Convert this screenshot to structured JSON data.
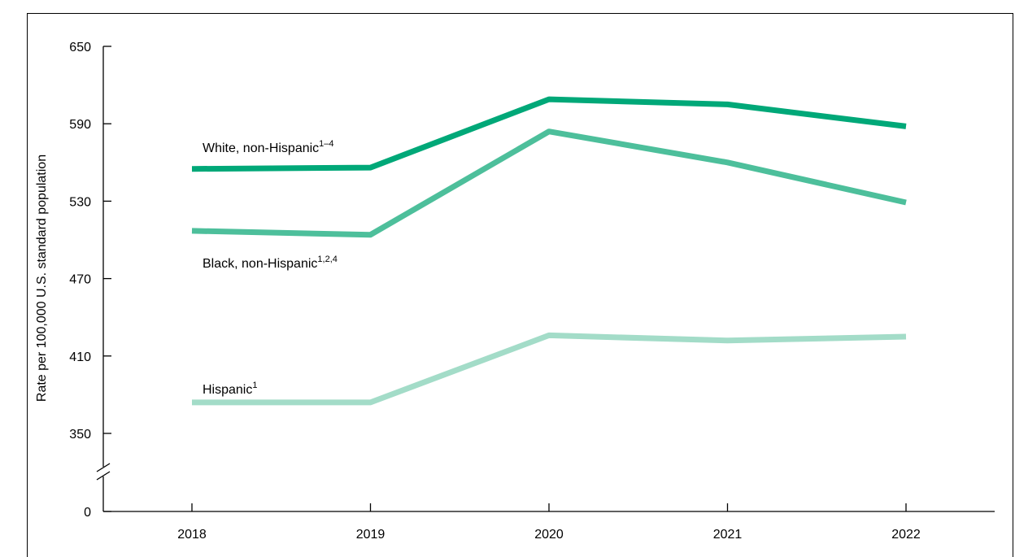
{
  "chart_data": {
    "type": "line",
    "title": "",
    "xlabel": "",
    "ylabel": "Rate per 100,000 U.S. standard population",
    "categories": [
      "2018",
      "2019",
      "2020",
      "2021",
      "2022"
    ],
    "y_ticks": [
      "650",
      "590",
      "530",
      "470",
      "410",
      "350",
      "0"
    ],
    "ylim": [
      330,
      650
    ],
    "axis_break": true,
    "grid": false,
    "series": [
      {
        "name": "White, non-Hispanic",
        "superscript": "1–4",
        "color": "#00a878",
        "values": [
          555,
          556,
          609,
          605,
          588
        ]
      },
      {
        "name": "Black, non-Hispanic",
        "superscript": "1,2,4",
        "color": "#4dbf9b",
        "values": [
          507,
          504,
          584,
          560,
          529
        ]
      },
      {
        "name": "Hispanic",
        "superscript": "1",
        "color": "#a3dcc8",
        "values": [
          374,
          374,
          426,
          422,
          425
        ]
      }
    ]
  }
}
